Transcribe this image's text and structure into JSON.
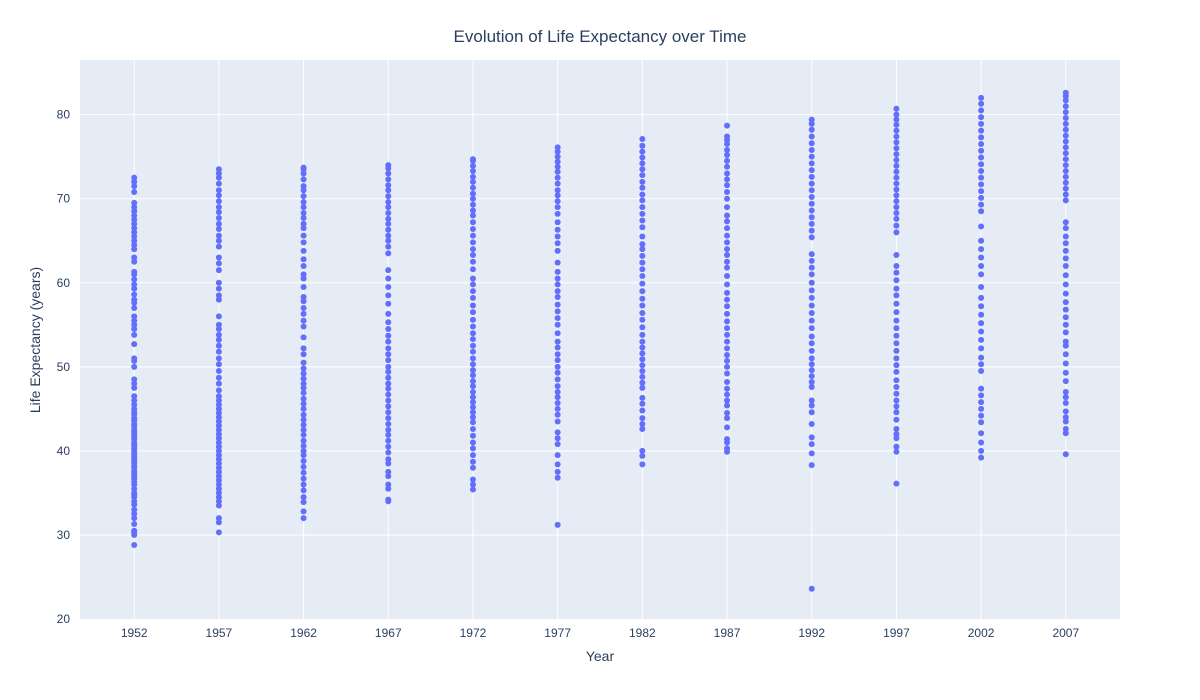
{
  "chart_data": {
    "type": "scatter",
    "title": "Evolution of Life Expectancy over Time",
    "xlabel": "Year",
    "ylabel": "Life Expectancy (years)",
    "xlim": [
      1948.8,
      2010.2
    ],
    "ylim": [
      20,
      86.5
    ],
    "x_ticks": [
      1952,
      1957,
      1962,
      1967,
      1972,
      1977,
      1982,
      1987,
      1992,
      1997,
      2002,
      2007
    ],
    "y_ticks": [
      20,
      30,
      40,
      50,
      60,
      70,
      80
    ],
    "grid": true,
    "colors": {
      "points": "#636efa",
      "plot_bg": "#e5ecf6",
      "grid": "#ffffff",
      "text": "#2a3f5f"
    },
    "series": [
      {
        "x": 1952,
        "y": [
          28.8,
          30.0,
          30.3,
          30.5,
          31.3,
          32.0,
          32.5,
          33.0,
          33.6,
          34.0,
          34.5,
          34.8,
          35.0,
          35.5,
          36.0,
          36.3,
          36.7,
          37.0,
          37.3,
          37.6,
          38.0,
          38.2,
          38.5,
          38.8,
          39.0,
          39.3,
          39.6,
          39.9,
          40.2,
          40.5,
          40.8,
          41.0,
          41.4,
          41.7,
          42.0,
          42.3,
          42.6,
          43.0,
          43.2,
          43.6,
          43.9,
          44.3,
          44.6,
          45.0,
          45.5,
          46.0,
          46.5,
          47.5,
          48.0,
          48.5,
          50.0,
          50.7,
          51.0,
          52.7,
          53.8,
          54.5,
          55.0,
          55.5,
          56.0,
          57.0,
          57.6,
          58.0,
          58.6,
          59.3,
          59.8,
          60.4,
          61.0,
          61.3,
          62.5,
          63.0,
          64.0,
          64.5,
          65.0,
          65.5,
          66.0,
          66.5,
          67.0,
          67.5,
          68.0,
          68.5,
          69.0,
          69.5,
          70.8,
          71.5,
          72.0,
          72.5
        ]
      },
      {
        "x": 1957,
        "y": [
          30.3,
          31.5,
          32.0,
          33.5,
          34.0,
          34.5,
          35.0,
          35.5,
          36.0,
          36.5,
          37.0,
          37.5,
          38.0,
          38.5,
          39.0,
          39.5,
          40.0,
          40.5,
          41.0,
          41.5,
          42.0,
          42.5,
          43.0,
          43.5,
          44.0,
          44.5,
          45.0,
          45.5,
          46.0,
          46.5,
          47.2,
          48.0,
          48.7,
          49.5,
          50.3,
          51.0,
          51.8,
          52.5,
          53.2,
          53.8,
          54.5,
          55.0,
          56.0,
          58.0,
          58.5,
          59.3,
          60.0,
          61.5,
          62.3,
          63.0,
          64.3,
          65.0,
          65.6,
          66.4,
          67.0,
          67.7,
          68.4,
          69.0,
          69.7,
          70.4,
          71.0,
          71.8,
          72.5,
          73.0,
          73.5
        ]
      },
      {
        "x": 1962,
        "y": [
          32.0,
          32.8,
          33.9,
          34.5,
          35.3,
          36.0,
          36.7,
          37.4,
          38.1,
          38.8,
          39.5,
          40.0,
          40.6,
          41.2,
          41.9,
          42.5,
          43.1,
          43.7,
          44.3,
          45.0,
          45.6,
          46.2,
          46.9,
          47.5,
          48.0,
          48.6,
          49.2,
          49.8,
          50.5,
          51.5,
          52.2,
          53.5,
          54.8,
          55.5,
          56.3,
          57.0,
          57.8,
          58.3,
          59.5,
          60.5,
          61.0,
          62.0,
          62.8,
          63.8,
          64.8,
          65.6,
          66.5,
          67.0,
          67.7,
          68.3,
          69.0,
          69.6,
          70.3,
          71.0,
          71.5,
          72.3,
          73.0,
          73.5,
          73.7
        ]
      },
      {
        "x": 1967,
        "y": [
          34.0,
          34.2,
          35.5,
          36.0,
          37.0,
          37.5,
          38.5,
          39.0,
          39.8,
          40.5,
          41.2,
          41.9,
          42.5,
          43.2,
          43.9,
          44.6,
          45.3,
          46.0,
          46.7,
          47.4,
          48.0,
          48.7,
          49.4,
          50.0,
          50.8,
          51.5,
          52.2,
          53.0,
          53.7,
          54.5,
          55.3,
          56.3,
          57.5,
          58.5,
          59.5,
          60.5,
          61.5,
          63.5,
          64.3,
          65.0,
          65.6,
          66.3,
          67.0,
          67.6,
          68.3,
          69.0,
          69.6,
          70.3,
          71.0,
          71.6,
          72.3,
          73.0,
          73.6,
          74.0
        ]
      },
      {
        "x": 1972,
        "y": [
          35.4,
          36.0,
          36.6,
          38.0,
          38.7,
          39.5,
          40.3,
          41.0,
          41.8,
          42.6,
          43.4,
          44.0,
          44.6,
          45.2,
          45.8,
          46.4,
          47.0,
          47.7,
          48.3,
          49.0,
          49.6,
          50.3,
          51.0,
          51.8,
          52.5,
          53.3,
          54.0,
          54.8,
          55.6,
          56.5,
          57.3,
          58.2,
          59.0,
          59.8,
          60.5,
          61.6,
          62.5,
          63.3,
          64.0,
          64.8,
          65.6,
          66.4,
          67.2,
          68.0,
          68.6,
          69.3,
          70.0,
          70.6,
          71.3,
          72.0,
          72.6,
          73.3,
          73.9,
          74.5,
          74.7
        ]
      },
      {
        "x": 1977,
        "y": [
          31.2,
          36.8,
          37.5,
          38.4,
          39.5,
          40.8,
          41.5,
          42.2,
          43.5,
          44.3,
          45.0,
          45.7,
          46.4,
          47.0,
          47.7,
          48.5,
          49.3,
          50.0,
          50.8,
          51.5,
          52.3,
          53.0,
          54.0,
          55.0,
          55.8,
          56.6,
          57.4,
          58.3,
          59.0,
          59.8,
          60.5,
          61.3,
          62.4,
          63.8,
          64.7,
          65.5,
          66.3,
          67.2,
          68.2,
          69.0,
          69.7,
          70.4,
          71.0,
          71.8,
          72.5,
          73.2,
          73.8,
          74.4,
          75.0,
          75.6,
          76.1
        ]
      },
      {
        "x": 1982,
        "y": [
          38.4,
          39.4,
          40.0,
          42.6,
          43.2,
          43.9,
          44.8,
          45.6,
          46.3,
          47.5,
          48.1,
          48.8,
          49.5,
          50.2,
          50.9,
          51.6,
          52.3,
          53.0,
          53.8,
          54.7,
          55.6,
          56.4,
          57.3,
          58.1,
          59.0,
          59.9,
          60.8,
          61.6,
          62.4,
          63.2,
          64.0,
          64.6,
          65.5,
          66.6,
          67.4,
          68.2,
          69.0,
          69.8,
          70.5,
          71.3,
          72.0,
          72.8,
          73.5,
          74.2,
          74.9,
          75.6,
          76.3,
          77.1
        ]
      },
      {
        "x": 1987,
        "y": [
          39.9,
          40.3,
          41.0,
          41.4,
          42.8,
          43.9,
          44.5,
          45.4,
          46.0,
          46.7,
          47.4,
          48.2,
          49.2,
          50.0,
          50.7,
          51.4,
          52.2,
          53.0,
          53.8,
          54.6,
          55.4,
          56.3,
          57.2,
          58.0,
          58.8,
          59.8,
          60.8,
          61.8,
          62.5,
          63.3,
          64.0,
          64.8,
          65.6,
          66.5,
          67.3,
          68.0,
          69.0,
          70.0,
          70.8,
          71.6,
          72.3,
          73.0,
          73.8,
          74.5,
          75.2,
          75.8,
          76.5,
          77.0,
          77.4,
          78.7
        ]
      },
      {
        "x": 1992,
        "y": [
          23.6,
          38.3,
          39.7,
          40.8,
          41.6,
          43.2,
          44.6,
          45.4,
          46.0,
          47.6,
          48.2,
          48.9,
          49.6,
          50.3,
          51.0,
          51.9,
          52.8,
          53.6,
          54.6,
          55.5,
          56.4,
          57.3,
          58.2,
          59.1,
          60.0,
          61.0,
          61.8,
          62.6,
          63.4,
          65.4,
          66.2,
          67.0,
          67.8,
          68.6,
          69.4,
          70.2,
          71.0,
          71.8,
          72.6,
          73.4,
          74.2,
          75.0,
          75.8,
          76.6,
          77.4,
          78.2,
          78.9,
          79.4
        ]
      },
      {
        "x": 1997,
        "y": [
          36.1,
          39.9,
          40.5,
          41.5,
          42.0,
          42.6,
          43.7,
          44.6,
          45.3,
          46.0,
          46.8,
          47.6,
          48.4,
          49.4,
          50.2,
          51.0,
          51.9,
          52.8,
          53.7,
          54.6,
          55.5,
          56.5,
          57.5,
          58.5,
          59.3,
          60.3,
          61.2,
          62.0,
          63.3,
          66.0,
          66.8,
          67.6,
          68.3,
          69.0,
          69.7,
          70.4,
          71.1,
          71.8,
          72.5,
          73.2,
          73.9,
          74.6,
          75.3,
          76.0,
          76.7,
          77.4,
          78.1,
          78.8,
          79.4,
          80.0,
          80.7
        ]
      },
      {
        "x": 2002,
        "y": [
          39.2,
          40.0,
          41.0,
          42.1,
          43.4,
          44.2,
          45.0,
          45.8,
          46.6,
          47.4,
          49.5,
          50.3,
          51.1,
          52.2,
          53.2,
          54.2,
          55.2,
          56.2,
          57.2,
          58.2,
          59.5,
          61.0,
          62.0,
          63.0,
          64.0,
          65.0,
          66.7,
          68.5,
          69.3,
          70.1,
          70.9,
          71.7,
          72.5,
          73.3,
          74.1,
          74.9,
          75.7,
          76.5,
          77.3,
          78.1,
          78.9,
          79.7,
          80.5,
          81.3,
          82.0
        ]
      },
      {
        "x": 2007,
        "y": [
          39.6,
          42.1,
          42.6,
          43.5,
          44.0,
          44.7,
          45.7,
          46.4,
          47.0,
          48.3,
          49.3,
          50.4,
          51.5,
          52.5,
          53.0,
          54.1,
          55.0,
          55.9,
          56.8,
          57.7,
          58.7,
          59.8,
          60.9,
          62.0,
          62.9,
          63.8,
          64.7,
          65.5,
          66.5,
          67.2,
          69.8,
          70.5,
          71.2,
          71.9,
          72.6,
          73.3,
          74.0,
          74.7,
          75.4,
          76.1,
          76.8,
          77.5,
          78.2,
          78.9,
          79.6,
          80.3,
          81.0,
          81.7,
          82.2,
          82.6
        ]
      }
    ]
  }
}
